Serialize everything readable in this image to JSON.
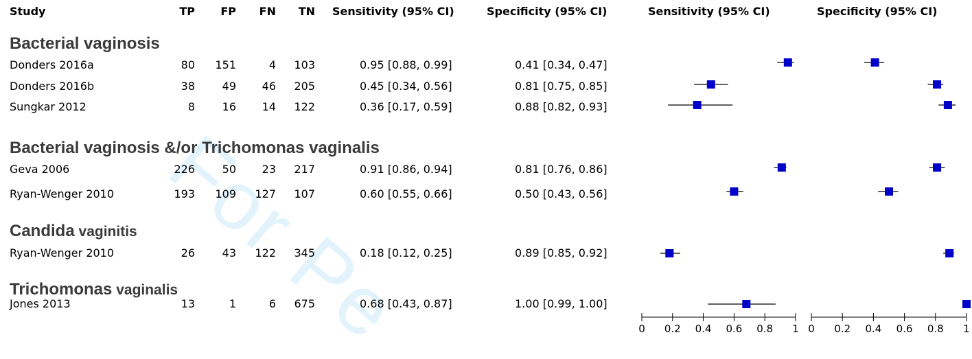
{
  "headers": {
    "study": "Study",
    "tp": "TP",
    "fp": "FP",
    "fn": "FN",
    "tn": "TN",
    "sens": "Sensitivity (95% CI)",
    "spec": "Specificity (95% CI)",
    "sens_plot": "Sensitivity (95% CI)",
    "spec_plot": "Specificity (95% CI)"
  },
  "groups": [
    {
      "main": "Bacterial vaginosis",
      "sub": ""
    },
    {
      "main": "Bacterial vaginosis &/or Trichomonas vaginalis",
      "sub": ""
    },
    {
      "main": "Candida",
      "sub": " vaginitis"
    },
    {
      "main": "Trichomonas",
      "sub": " vaginalis"
    }
  ],
  "rows": [
    {
      "study": "Donders 2016a",
      "tp": "80",
      "fp": "151",
      "fn": "4",
      "tn": "103",
      "sens": "0.95 [0.88, 0.99]",
      "spec": "0.41 [0.34, 0.47]"
    },
    {
      "study": "Donders 2016b",
      "tp": "38",
      "fp": "49",
      "fn": "46",
      "tn": "205",
      "sens": "0.45 [0.34, 0.56]",
      "spec": "0.81 [0.75, 0.85]"
    },
    {
      "study": "Sungkar 2012",
      "tp": "8",
      "fp": "16",
      "fn": "14",
      "tn": "122",
      "sens": "0.36 [0.17, 0.59]",
      "spec": "0.88 [0.82, 0.93]"
    },
    {
      "study": "Geva 2006",
      "tp": "226",
      "fp": "50",
      "fn": "23",
      "tn": "217",
      "sens": "0.91 [0.86, 0.94]",
      "spec": "0.81 [0.76, 0.86]"
    },
    {
      "study": "Ryan-Wenger 2010",
      "tp": "193",
      "fp": "109",
      "fn": "127",
      "tn": "107",
      "sens": "0.60 [0.55, 0.66]",
      "spec": "0.50 [0.43, 0.56]"
    },
    {
      "study": "Ryan-Wenger 2010",
      "tp": "26",
      "fp": "43",
      "fn": "122",
      "tn": "345",
      "sens": "0.18 [0.12, 0.25]",
      "spec": "0.89 [0.85, 0.92]"
    },
    {
      "study": "Jones 2013",
      "tp": "13",
      "fp": "1",
      "fn": "6",
      "tn": "675",
      "sens": "0.68 [0.43, 0.87]",
      "spec": "1.00 [0.99, 1.00]"
    }
  ],
  "watermark": "For Pe",
  "chart_data": {
    "type": "scatter",
    "subtype": "forest-plot",
    "panels": [
      {
        "name": "Sensitivity (95% CI)",
        "xlim": [
          0,
          1
        ],
        "ticks": [
          "0",
          "0.2",
          "0.4",
          "0.6",
          "0.8",
          "1"
        ],
        "points": [
          {
            "est": 0.95,
            "lo": 0.88,
            "hi": 0.99
          },
          {
            "est": 0.45,
            "lo": 0.34,
            "hi": 0.56
          },
          {
            "est": 0.36,
            "lo": 0.17,
            "hi": 0.59
          },
          {
            "est": 0.91,
            "lo": 0.86,
            "hi": 0.94
          },
          {
            "est": 0.6,
            "lo": 0.55,
            "hi": 0.66
          },
          {
            "est": 0.18,
            "lo": 0.12,
            "hi": 0.25
          },
          {
            "est": 0.68,
            "lo": 0.43,
            "hi": 0.87
          }
        ]
      },
      {
        "name": "Specificity (95% CI)",
        "xlim": [
          0,
          1
        ],
        "ticks": [
          "0",
          "0.2",
          "0.4",
          "0.6",
          "0.8",
          "1"
        ],
        "points": [
          {
            "est": 0.41,
            "lo": 0.34,
            "hi": 0.47
          },
          {
            "est": 0.81,
            "lo": 0.75,
            "hi": 0.85
          },
          {
            "est": 0.88,
            "lo": 0.82,
            "hi": 0.93
          },
          {
            "est": 0.81,
            "lo": 0.76,
            "hi": 0.86
          },
          {
            "est": 0.5,
            "lo": 0.43,
            "hi": 0.56
          },
          {
            "est": 0.89,
            "lo": 0.85,
            "hi": 0.92
          },
          {
            "est": 1.0,
            "lo": 0.99,
            "hi": 1.0
          }
        ]
      }
    ],
    "marker_color": "#0000c8",
    "line_color": "#000000"
  }
}
